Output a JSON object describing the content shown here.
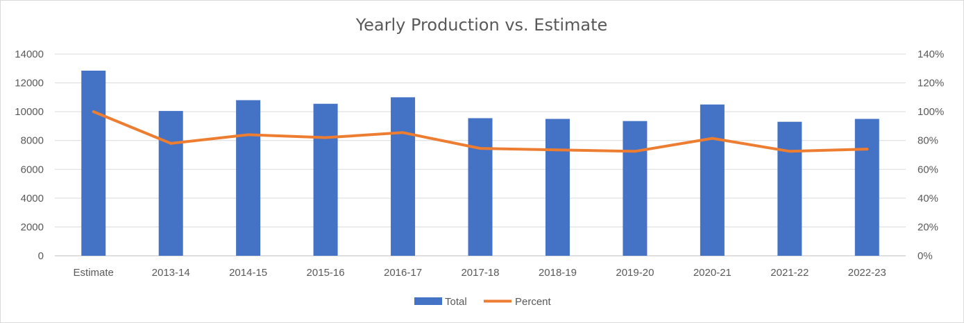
{
  "chart_data": {
    "type": "bar",
    "title": "Yearly Production vs. Estimate",
    "categories": [
      "Estimate",
      "2013-14",
      "2014-15",
      "2015-16",
      "2016-17",
      "2017-18",
      "2018-19",
      "2019-20",
      "2020-21",
      "2021-22",
      "2022-23"
    ],
    "series": [
      {
        "name": "Total",
        "type": "bar",
        "axis": "left",
        "color": "#4472c4",
        "values": [
          12850,
          10050,
          10800,
          10550,
          11000,
          9550,
          9500,
          9350,
          10500,
          9300,
          9500
        ]
      },
      {
        "name": "Percent",
        "type": "line",
        "axis": "right",
        "color": "#ed7d31",
        "values": [
          1.0,
          0.78,
          0.84,
          0.82,
          0.855,
          0.745,
          0.735,
          0.725,
          0.815,
          0.725,
          0.74
        ]
      }
    ],
    "y_left": {
      "min": 0,
      "max": 14000,
      "ticks": [
        "0",
        "2000",
        "4000",
        "6000",
        "8000",
        "10000",
        "12000",
        "14000"
      ]
    },
    "y_right": {
      "min": 0,
      "max": 1.4,
      "ticks": [
        "0%",
        "20%",
        "40%",
        "60%",
        "80%",
        "100%",
        "120%",
        "140%"
      ]
    },
    "grid": true,
    "legend_position": "bottom"
  }
}
